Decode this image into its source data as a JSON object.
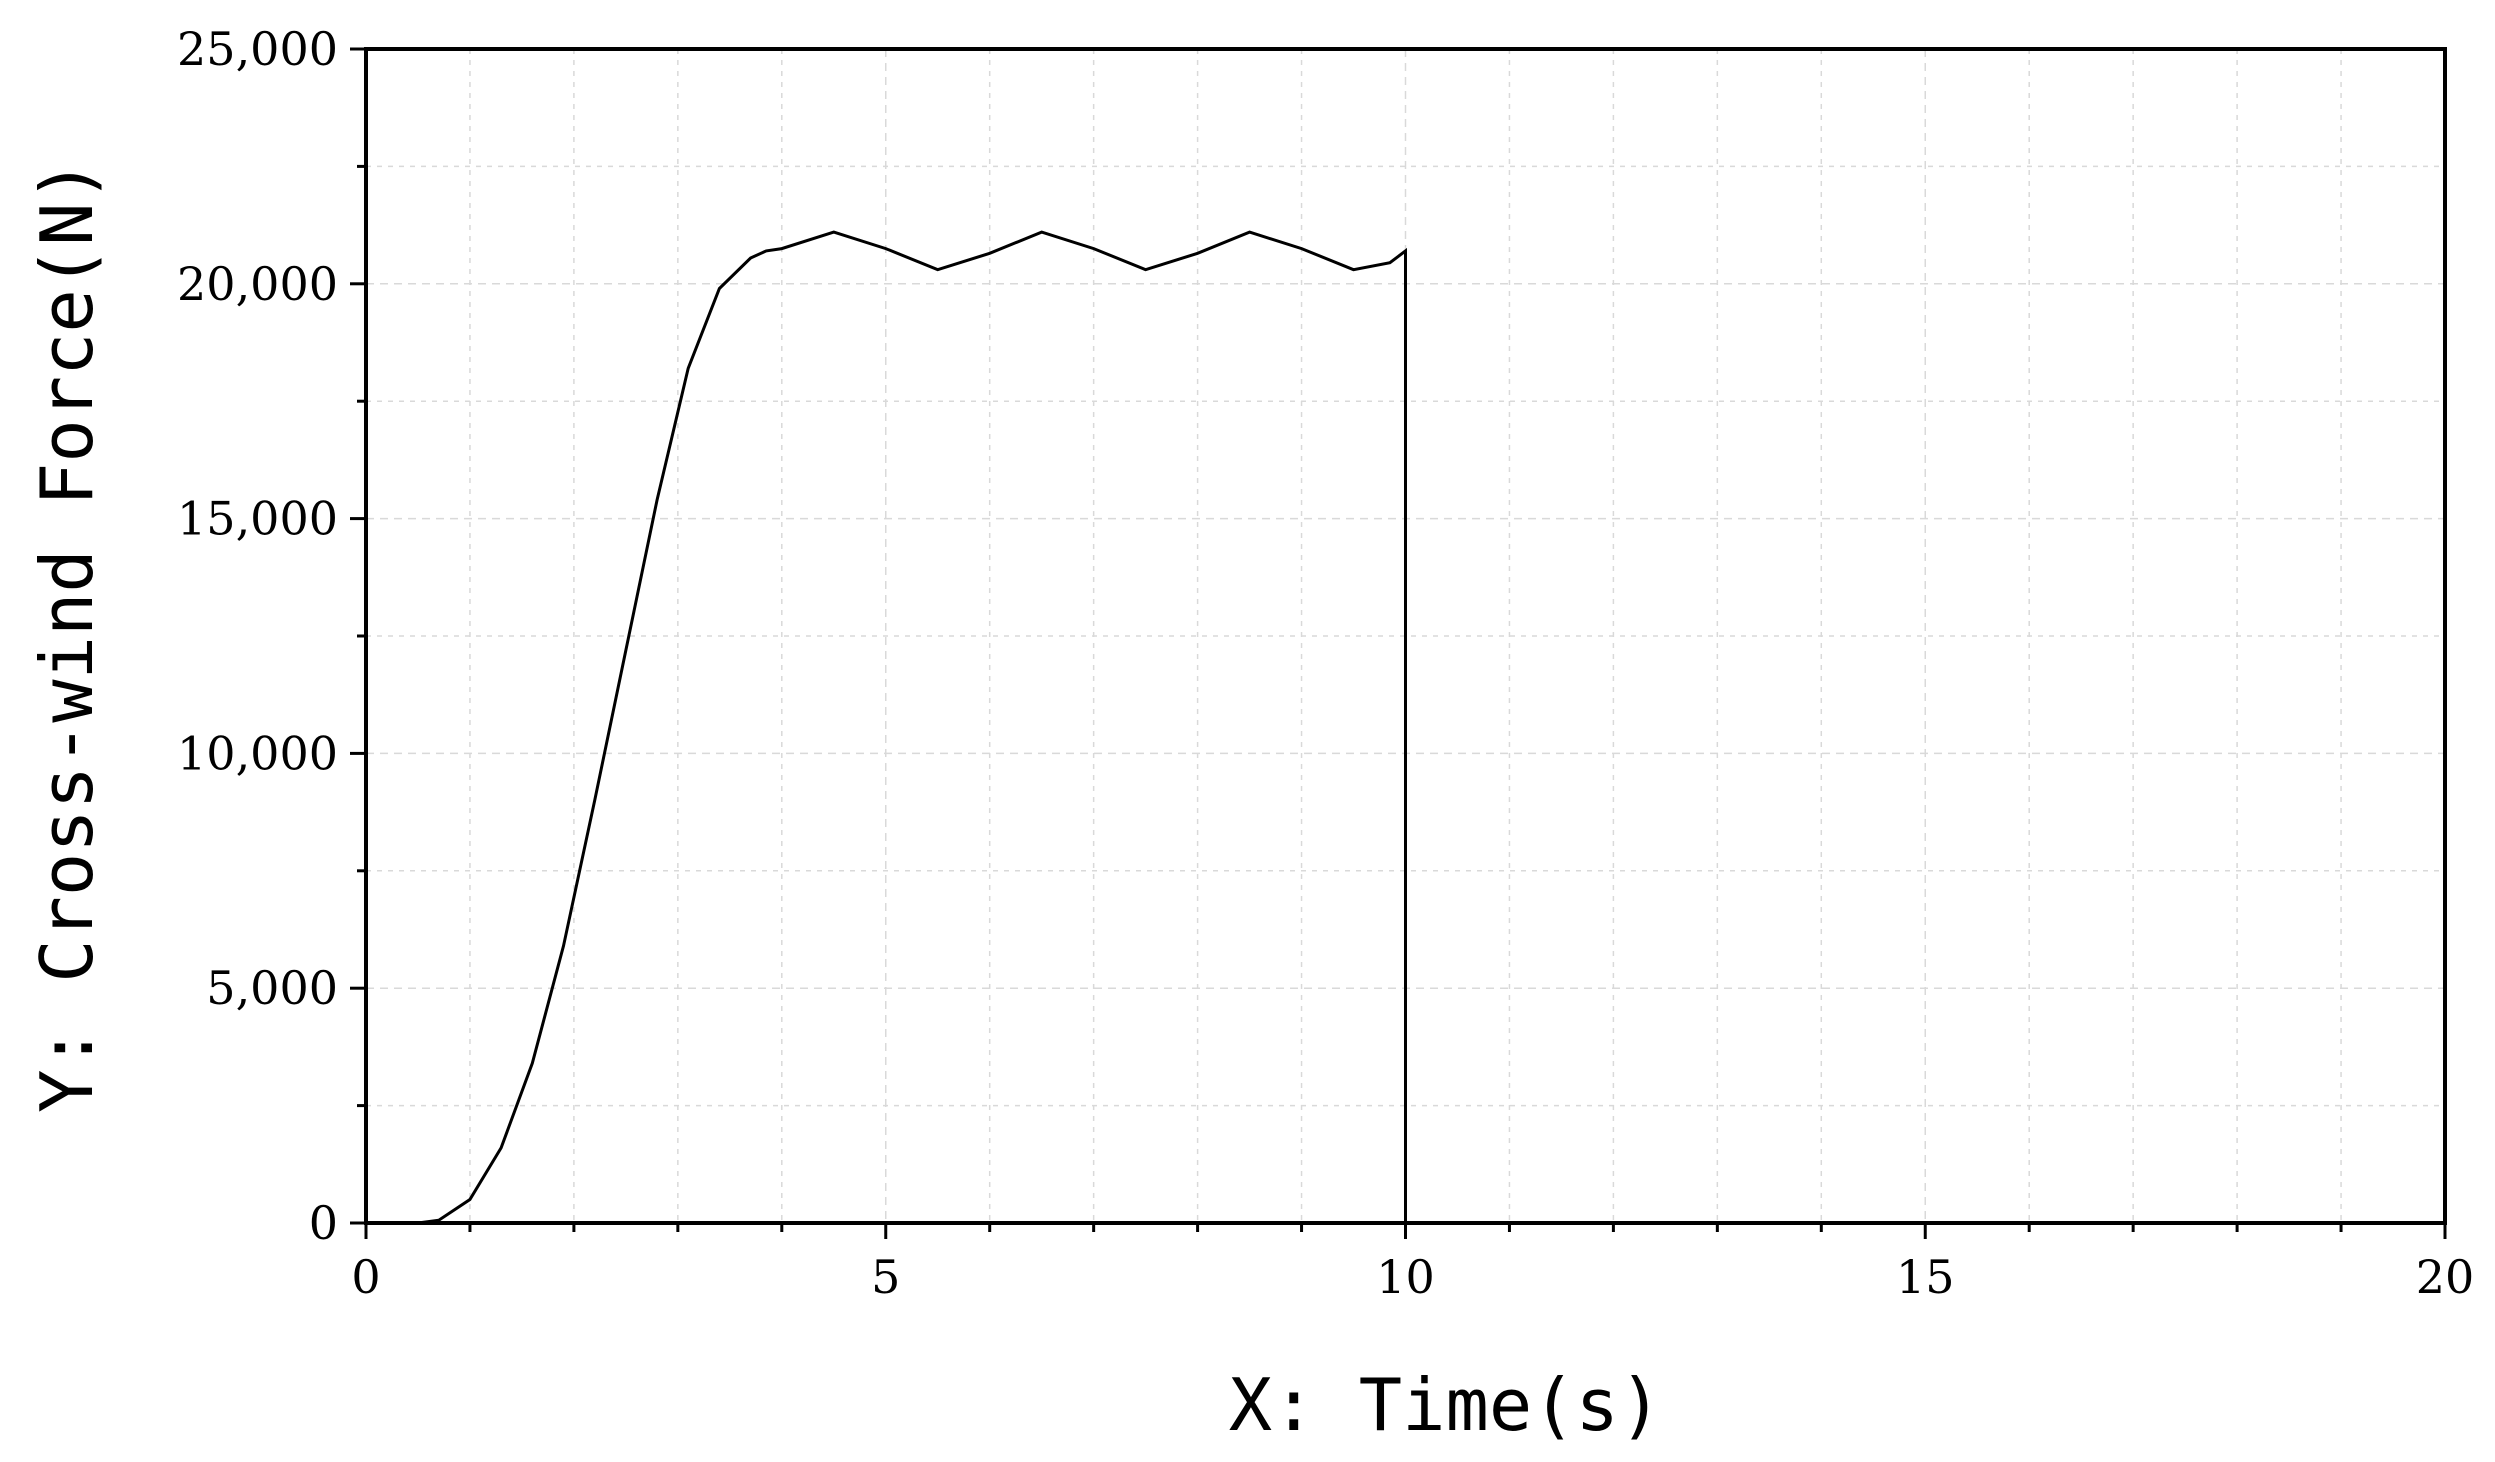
{
  "chart_data": {
    "type": "line",
    "title": "",
    "xlabel": "X: Time(s)",
    "ylabel": "Y: Cross-wind Force(N)",
    "xlim": [
      0,
      20
    ],
    "ylim": [
      0,
      25000
    ],
    "x_ticks": [
      0,
      5,
      10,
      15,
      20
    ],
    "x_tick_labels": [
      "0",
      "5",
      "10",
      "15",
      "20"
    ],
    "y_ticks": [
      0,
      5000,
      10000,
      15000,
      20000,
      25000
    ],
    "y_tick_labels": [
      "0",
      "5,000",
      "10,000",
      "15,000",
      "20,000",
      "25,000"
    ],
    "grid": true,
    "legend": "none",
    "colors": {
      "line": "#000000",
      "grid": "#d9d9d9",
      "axis": "#000000"
    },
    "series": [
      {
        "x": [
          0,
          0.5,
          0.7,
          1.0,
          1.3,
          1.6,
          1.9,
          2.2,
          2.5,
          2.8,
          3.1,
          3.4,
          3.7,
          3.85,
          4.0,
          4.5,
          5.0,
          5.5,
          6.0,
          6.5,
          7.0,
          7.5,
          8.0,
          8.5,
          9.0,
          9.5,
          9.85,
          10.0,
          10.0,
          10.0
        ],
        "y": [
          0,
          0,
          60,
          500,
          1600,
          3400,
          5900,
          9000,
          12200,
          15400,
          18200,
          19900,
          20550,
          20700,
          20750,
          21100,
          20750,
          20300,
          20650,
          21100,
          20750,
          20300,
          20650,
          21100,
          20750,
          20300,
          20450,
          20700,
          17000,
          0
        ]
      }
    ]
  }
}
